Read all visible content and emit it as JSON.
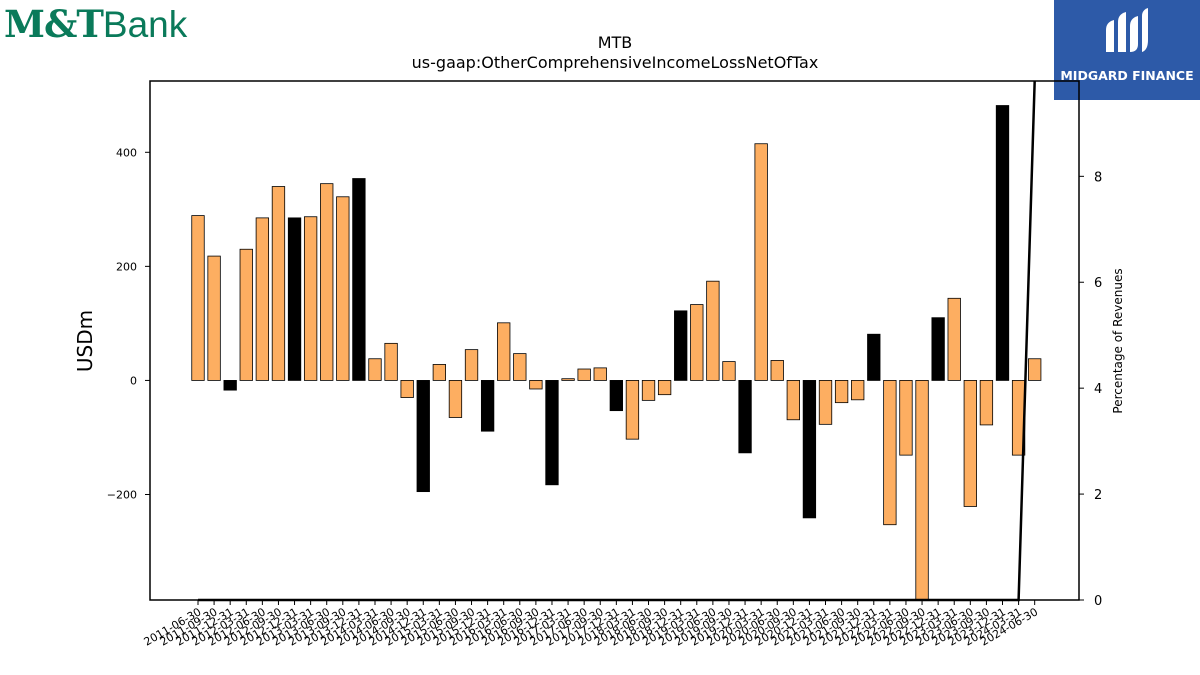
{
  "branding": {
    "left_logo_mt": "M&T",
    "left_logo_bank": "Bank",
    "left_logo_color": "#0a7a5a",
    "right_logo_text": "MIDGARD FINANCE",
    "right_logo_bg": "#2d5aa8"
  },
  "chart_data": {
    "type": "bar",
    "title": "MTB",
    "subtitle": "us-gaap:OtherComprehensiveIncomeLossNetOfTax",
    "ylabel": "USDm",
    "y2label": "Percentage of Revenues",
    "ylim": [
      -385,
      525
    ],
    "y2lim": [
      0,
      9.8
    ],
    "yticks": [
      -200,
      0,
      200,
      400
    ],
    "yticklabels": [
      "−200",
      "0",
      "200",
      "400"
    ],
    "y2ticks": [
      0,
      2,
      4,
      6,
      8
    ],
    "y2ticklabels": [
      "0",
      "2",
      "4",
      "6",
      "8"
    ],
    "colors": {
      "normal": "#fdae61",
      "highlight": "#000000"
    },
    "categories": [
      "2011-06-30",
      "2011-09-30",
      "2011-12-31",
      "2012-03-31",
      "2012-06-30",
      "2012-09-30",
      "2012-12-31",
      "2013-03-31",
      "2013-06-30",
      "2013-09-30",
      "2013-12-31",
      "2014-03-31",
      "2014-06-30",
      "2014-09-30",
      "2014-12-31",
      "2015-03-31",
      "2015-06-30",
      "2015-09-30",
      "2015-12-31",
      "2016-03-31",
      "2016-06-30",
      "2016-09-30",
      "2016-12-31",
      "2017-03-31",
      "2017-06-30",
      "2017-09-30",
      "2017-12-31",
      "2018-03-31",
      "2018-06-30",
      "2018-09-30",
      "2018-12-31",
      "2019-03-31",
      "2019-06-30",
      "2019-09-30",
      "2019-12-31",
      "2020-03-31",
      "2020-06-30",
      "2020-09-30",
      "2020-12-31",
      "2021-03-31",
      "2021-06-30",
      "2021-09-30",
      "2021-12-31",
      "2022-03-31",
      "2022-06-30",
      "2022-09-30",
      "2022-12-31",
      "2023-03-31",
      "2023-06-30",
      "2023-09-30",
      "2023-12-31",
      "2024-03-31",
      "2024-06-30"
    ],
    "values": [
      289,
      218,
      -17,
      230,
      285,
      340,
      285,
      287,
      345,
      322,
      354,
      38,
      65,
      -30,
      -195,
      28,
      -65,
      54,
      -89,
      101,
      47,
      -15,
      -183,
      3,
      20,
      22,
      -53,
      -103,
      -35,
      -25,
      122,
      133,
      174,
      33,
      -127,
      415,
      35,
      -69,
      -241,
      -77,
      -39,
      -34,
      81,
      -253,
      -131,
      -385,
      110,
      144,
      -221,
      -78,
      482,
      -131,
      38
    ],
    "highlight": [
      false,
      false,
      true,
      false,
      false,
      false,
      true,
      false,
      false,
      false,
      true,
      false,
      false,
      false,
      true,
      false,
      false,
      false,
      true,
      false,
      false,
      false,
      true,
      false,
      false,
      false,
      true,
      false,
      false,
      false,
      true,
      false,
      false,
      false,
      true,
      false,
      false,
      false,
      true,
      false,
      false,
      false,
      true,
      false,
      false,
      false,
      true,
      false,
      false,
      false,
      true,
      false,
      false
    ],
    "percent_line": [
      0,
      0,
      0,
      0,
      0,
      0,
      0,
      0,
      0,
      0,
      0,
      0,
      0,
      0,
      0,
      0,
      0,
      0,
      0,
      0,
      0,
      0,
      0,
      0,
      0,
      0,
      0,
      0,
      0,
      0,
      0,
      0,
      0,
      0,
      0,
      0,
      0,
      0,
      0,
      0,
      0,
      0,
      0,
      0,
      0,
      0,
      0,
      0,
      0,
      0,
      0,
      0,
      9.8
    ]
  }
}
